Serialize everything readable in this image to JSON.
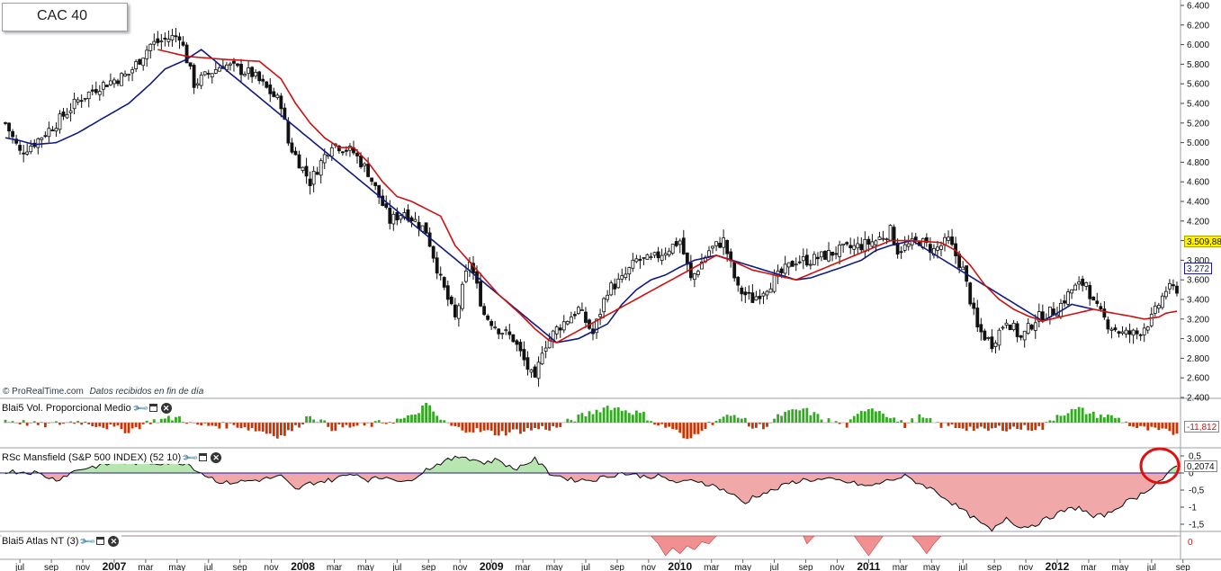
{
  "title": "CAC 40",
  "source": {
    "brand": "© ProRealTime.com",
    "note": "Datos recibidos en fin de día"
  },
  "colors": {
    "candle": "#111111",
    "ma_fast": "#cc1111",
    "ma_slow": "#111a80",
    "vol_up": "#33aa22",
    "vol_down": "#cc3300",
    "rs_pos_fill": "#b8e6b0",
    "rs_neg_fill": "#f0a8a8",
    "rs_line": "#0a0a0a",
    "zero_line": "#1a1aa0",
    "atlas_fill": "#f09090",
    "highlight_circle": "#e01010",
    "price_tag_bg": "#fff200",
    "ma_tag_border": "#1a1aa0",
    "vol_tag_text": "#cc1111"
  },
  "panels": {
    "volume": {
      "label": "Blai5 Vol. Proporcional Medio",
      "value": "-11,812"
    },
    "rs": {
      "label": "RSc Mansfield (S&P 500 INDEX) (52 10)",
      "value": "0,2074"
    },
    "atlas": {
      "label": "Blai5 Atlas NT (3)",
      "value": "0"
    }
  },
  "price_tags": {
    "last": "3.509,88",
    "ma": "3.272"
  },
  "chart_data": {
    "type": "candlestick",
    "title": "CAC 40",
    "timeframe": "weekly",
    "y_axis": {
      "ticks": [
        "6.400",
        "6.200",
        "6.000",
        "5.800",
        "5.600",
        "5.400",
        "5.200",
        "5.000",
        "4.800",
        "4.600",
        "4.400",
        "4.200",
        "4.000",
        "3.800",
        "3.600",
        "3.400",
        "3.200",
        "3.000",
        "2.800",
        "2.600",
        "2.400"
      ],
      "min": 2400,
      "max": 6400
    },
    "rs_axis": {
      "ticks": [
        "0.5",
        "0",
        "-0.5",
        "-1",
        "-1.5"
      ],
      "min": -1.85,
      "max": 0.8
    },
    "atlas_axis": {
      "ticks": [
        "0"
      ]
    },
    "x_axis": {
      "labels": [
        "jul",
        "sep",
        "nov",
        "2007",
        "mar",
        "may",
        "jul",
        "sep",
        "nov",
        "2008",
        "mar",
        "may",
        "jul",
        "sep",
        "nov",
        "2009",
        "mar",
        "may",
        "jul",
        "sep",
        "nov",
        "2010",
        "mar",
        "may",
        "jul",
        "sep",
        "nov",
        "2011",
        "mar",
        "may",
        "jul",
        "sep",
        "nov",
        "2012",
        "mar",
        "may",
        "jul",
        "sep"
      ],
      "bold": [
        "2007",
        "2008",
        "2009",
        "2010",
        "2011",
        "2012"
      ],
      "start_week": 0,
      "step_weeks": 8.667
    },
    "series": [
      {
        "name": "CAC 40",
        "style": "candles",
        "close_anchors": [
          [
            0,
            5200
          ],
          [
            4,
            4900
          ],
          [
            8,
            5000
          ],
          [
            14,
            5200
          ],
          [
            20,
            5430
          ],
          [
            26,
            5580
          ],
          [
            34,
            5700
          ],
          [
            40,
            6000
          ],
          [
            48,
            6100
          ],
          [
            52,
            5600
          ],
          [
            60,
            5800
          ],
          [
            68,
            5700
          ],
          [
            76,
            5400
          ],
          [
            78,
            5000
          ],
          [
            84,
            4600
          ],
          [
            90,
            5000
          ],
          [
            96,
            4900
          ],
          [
            100,
            4700
          ],
          [
            106,
            4200
          ],
          [
            110,
            4300
          ],
          [
            116,
            4100
          ],
          [
            120,
            3600
          ],
          [
            124,
            3200
          ],
          [
            128,
            3800
          ],
          [
            132,
            3250
          ],
          [
            136,
            3100
          ],
          [
            140,
            3000
          ],
          [
            144,
            2700
          ],
          [
            146,
            2550
          ],
          [
            148,
            2900
          ],
          [
            152,
            3100
          ],
          [
            158,
            3300
          ],
          [
            162,
            3050
          ],
          [
            166,
            3500
          ],
          [
            170,
            3600
          ],
          [
            174,
            3800
          ],
          [
            178,
            3800
          ],
          [
            182,
            3900
          ],
          [
            186,
            4000
          ],
          [
            189,
            3600
          ],
          [
            194,
            3900
          ],
          [
            198,
            4000
          ],
          [
            202,
            3500
          ],
          [
            206,
            3400
          ],
          [
            212,
            3600
          ],
          [
            218,
            3800
          ],
          [
            222,
            3800
          ],
          [
            230,
            3900
          ],
          [
            236,
            3950
          ],
          [
            240,
            4000
          ],
          [
            244,
            4100
          ],
          [
            246,
            3900
          ],
          [
            252,
            4000
          ],
          [
            256,
            3900
          ],
          [
            260,
            4000
          ],
          [
            264,
            3700
          ],
          [
            268,
            3100
          ],
          [
            272,
            2950
          ],
          [
            276,
            3200
          ],
          [
            280,
            3000
          ],
          [
            284,
            3200
          ],
          [
            290,
            3300
          ],
          [
            294,
            3500
          ],
          [
            298,
            3580
          ],
          [
            300,
            3350
          ],
          [
            304,
            3150
          ],
          [
            308,
            3050
          ],
          [
            312,
            3050
          ],
          [
            316,
            3200
          ],
          [
            320,
            3500
          ],
          [
            323,
            3510
          ]
        ],
        "last": 3509.88
      },
      {
        "name": "MA fast (red)",
        "style": "line",
        "anchors": [
          [
            42,
            5950
          ],
          [
            50,
            5880
          ],
          [
            60,
            5850
          ],
          [
            70,
            5830
          ],
          [
            76,
            5650
          ],
          [
            80,
            5400
          ],
          [
            84,
            5200
          ],
          [
            88,
            5050
          ],
          [
            92,
            4950
          ],
          [
            96,
            4950
          ],
          [
            100,
            4800
          ],
          [
            104,
            4600
          ],
          [
            108,
            4450
          ],
          [
            112,
            4400
          ],
          [
            120,
            4250
          ],
          [
            124,
            3950
          ],
          [
            130,
            3700
          ],
          [
            136,
            3450
          ],
          [
            142,
            3250
          ],
          [
            146,
            3100
          ],
          [
            150,
            2980
          ],
          [
            152,
            2960
          ],
          [
            196,
            3850
          ],
          [
            200,
            3800
          ],
          [
            206,
            3700
          ],
          [
            212,
            3650
          ],
          [
            218,
            3600
          ],
          [
            244,
            4000
          ],
          [
            250,
            4000
          ],
          [
            258,
            3980
          ],
          [
            262,
            3900
          ],
          [
            266,
            3750
          ],
          [
            270,
            3550
          ],
          [
            274,
            3400
          ],
          [
            278,
            3300
          ],
          [
            282,
            3230
          ],
          [
            286,
            3180
          ],
          [
            300,
            3300
          ],
          [
            304,
            3270
          ],
          [
            310,
            3230
          ],
          [
            314,
            3200
          ],
          [
            318,
            3220
          ],
          [
            320,
            3260
          ],
          [
            323,
            3280
          ]
        ]
      },
      {
        "name": "MA slow (blue)",
        "style": "line",
        "anchors": [
          [
            0,
            5050
          ],
          [
            4,
            5020
          ],
          [
            8,
            4980
          ],
          [
            14,
            5000
          ],
          [
            20,
            5100
          ],
          [
            26,
            5230
          ],
          [
            34,
            5400
          ],
          [
            40,
            5600
          ],
          [
            44,
            5750
          ],
          [
            50,
            5850
          ],
          [
            54,
            5950
          ],
          [
            152,
            2960
          ],
          [
            158,
            3000
          ],
          [
            166,
            3150
          ],
          [
            170,
            3350
          ],
          [
            174,
            3500
          ],
          [
            178,
            3600
          ],
          [
            182,
            3650
          ],
          [
            186,
            3730
          ],
          [
            190,
            3800
          ],
          [
            196,
            3850
          ],
          [
            218,
            3600
          ],
          [
            222,
            3620
          ],
          [
            230,
            3720
          ],
          [
            236,
            3800
          ],
          [
            240,
            3900
          ],
          [
            244,
            3950
          ],
          [
            250,
            4000
          ],
          [
            286,
            3180
          ],
          [
            290,
            3260
          ],
          [
            294,
            3350
          ],
          [
            300,
            3300
          ]
        ]
      }
    ],
    "volume_anchors": [
      [
        0,
        1
      ],
      [
        10,
        -1
      ],
      [
        20,
        0.5
      ],
      [
        34,
        -3
      ],
      [
        40,
        0.5
      ],
      [
        48,
        2
      ],
      [
        52,
        -1
      ],
      [
        64,
        -1
      ],
      [
        76,
        -5
      ],
      [
        80,
        -2
      ],
      [
        84,
        3
      ],
      [
        90,
        -2
      ],
      [
        100,
        -1
      ],
      [
        112,
        2
      ],
      [
        116,
        7
      ],
      [
        120,
        1
      ],
      [
        124,
        -2
      ],
      [
        130,
        -3
      ],
      [
        136,
        -4
      ],
      [
        142,
        -3
      ],
      [
        148,
        -2
      ],
      [
        152,
        -2
      ],
      [
        156,
        1
      ],
      [
        162,
        4
      ],
      [
        166,
        6
      ],
      [
        170,
        5
      ],
      [
        176,
        3
      ],
      [
        180,
        -1
      ],
      [
        184,
        -2
      ],
      [
        188,
        -7
      ],
      [
        192,
        -2
      ],
      [
        196,
        1
      ],
      [
        202,
        3
      ],
      [
        206,
        -2
      ],
      [
        210,
        -1
      ],
      [
        214,
        3
      ],
      [
        220,
        5
      ],
      [
        226,
        1
      ],
      [
        232,
        -1
      ],
      [
        238,
        6
      ],
      [
        242,
        4
      ],
      [
        248,
        -1
      ],
      [
        252,
        2
      ],
      [
        258,
        -1
      ],
      [
        266,
        -2
      ],
      [
        270,
        -3
      ],
      [
        274,
        -2
      ],
      [
        280,
        -2
      ],
      [
        286,
        -2
      ],
      [
        290,
        3
      ],
      [
        296,
        5
      ],
      [
        300,
        3
      ],
      [
        306,
        2
      ],
      [
        312,
        -2
      ],
      [
        318,
        -3
      ],
      [
        323,
        -4
      ]
    ],
    "rs_anchors": [
      [
        0,
        0.05
      ],
      [
        8,
        0.02
      ],
      [
        14,
        -0.2
      ],
      [
        20,
        0.1
      ],
      [
        30,
        0.3
      ],
      [
        40,
        0.3
      ],
      [
        50,
        0.3
      ],
      [
        54,
        0.0
      ],
      [
        60,
        -0.3
      ],
      [
        70,
        -0.2
      ],
      [
        76,
        -0.1
      ],
      [
        80,
        -0.5
      ],
      [
        84,
        -0.3
      ],
      [
        90,
        -0.2
      ],
      [
        96,
        0.0
      ],
      [
        100,
        -0.2
      ],
      [
        106,
        -0.1
      ],
      [
        110,
        -0.3
      ],
      [
        116,
        0.1
      ],
      [
        120,
        0.3
      ],
      [
        126,
        0.5
      ],
      [
        132,
        0.3
      ],
      [
        136,
        0.4
      ],
      [
        140,
        0.1
      ],
      [
        146,
        0.4
      ],
      [
        150,
        0.0
      ],
      [
        156,
        -0.2
      ],
      [
        162,
        -0.2
      ],
      [
        166,
        -0.1
      ],
      [
        170,
        0.0
      ],
      [
        176,
        -0.1
      ],
      [
        180,
        -0.1
      ],
      [
        186,
        -0.3
      ],
      [
        190,
        -0.2
      ],
      [
        196,
        -0.4
      ],
      [
        200,
        -0.6
      ],
      [
        204,
        -0.9
      ],
      [
        206,
        -0.7
      ],
      [
        212,
        -0.5
      ],
      [
        216,
        -0.3
      ],
      [
        220,
        -0.2
      ],
      [
        228,
        -0.2
      ],
      [
        234,
        -0.3
      ],
      [
        238,
        -0.4
      ],
      [
        244,
        -0.2
      ],
      [
        248,
        -0.1
      ],
      [
        252,
        -0.3
      ],
      [
        256,
        -0.5
      ],
      [
        260,
        -0.8
      ],
      [
        264,
        -1.1
      ],
      [
        268,
        -1.4
      ],
      [
        272,
        -1.7
      ],
      [
        276,
        -1.3
      ],
      [
        280,
        -1.6
      ],
      [
        284,
        -1.5
      ],
      [
        288,
        -1.3
      ],
      [
        292,
        -1.1
      ],
      [
        296,
        -1.0
      ],
      [
        300,
        -1.3
      ],
      [
        304,
        -1.2
      ],
      [
        308,
        -0.9
      ],
      [
        312,
        -0.7
      ],
      [
        316,
        -0.4
      ],
      [
        320,
        -0.1
      ],
      [
        323,
        0.21
      ]
    ],
    "atlas_anchors": [
      [
        0,
        0
      ],
      [
        178,
        0
      ],
      [
        180,
        -0.4
      ],
      [
        182,
        -1.0
      ],
      [
        184,
        -0.6
      ],
      [
        186,
        -0.9
      ],
      [
        188,
        -0.5
      ],
      [
        190,
        -0.7
      ],
      [
        192,
        -0.3
      ],
      [
        194,
        -0.4
      ],
      [
        196,
        0
      ],
      [
        220,
        0
      ],
      [
        221,
        -0.4
      ],
      [
        223,
        0
      ],
      [
        234,
        0
      ],
      [
        236,
        -0.5
      ],
      [
        238,
        -1.0
      ],
      [
        240,
        -0.5
      ],
      [
        242,
        0
      ],
      [
        250,
        0
      ],
      [
        252,
        -0.4
      ],
      [
        254,
        -0.9
      ],
      [
        256,
        -0.4
      ],
      [
        258,
        0
      ],
      [
        323,
        0
      ]
    ]
  }
}
